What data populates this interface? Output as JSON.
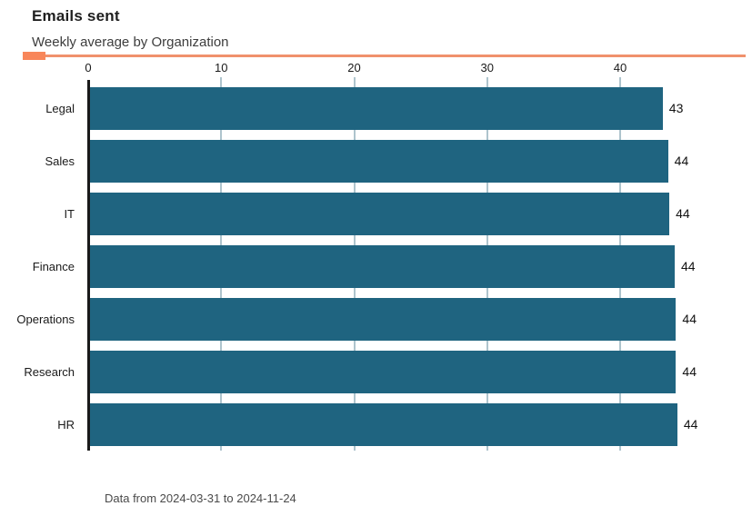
{
  "header": {
    "title": "Emails sent",
    "subtitle": "Weekly average by Organization"
  },
  "footer": {
    "note": "Data from 2024-03-31 to 2024-11-24"
  },
  "colors": {
    "bar": "#1f6480",
    "accent_block": "#f8865a",
    "accent_line": "#f0916c",
    "gridline": "#aec4cd",
    "axis": "#1a1a1a",
    "title_text": "#1f1f1f",
    "subtitle_text": "#3d3d3d",
    "footer_text": "#4a4a4a",
    "background": "#ffffff"
  },
  "chart_data": {
    "type": "bar",
    "orientation": "horizontal",
    "title": "Emails sent",
    "subtitle": "Weekly average by Organization",
    "categories": [
      "Legal",
      "Sales",
      "IT",
      "Finance",
      "Operations",
      "Research",
      "HR"
    ],
    "values": [
      43.2,
      43.6,
      43.7,
      44.1,
      44.2,
      44.2,
      44.3
    ],
    "value_labels": [
      "43",
      "44",
      "44",
      "44",
      "44",
      "44",
      "44"
    ],
    "xlabel": "",
    "ylabel": "",
    "xlim": [
      0,
      46.7
    ],
    "xticks": [
      0,
      10,
      20,
      30,
      40
    ],
    "xtick_labels": [
      "0",
      "10",
      "20",
      "30",
      "40"
    ],
    "grid": true,
    "grid_axis": "x",
    "legend": false,
    "value_label_position": "end-of-bar",
    "footnote": "Data from 2024-03-31 to 2024-11-24"
  }
}
